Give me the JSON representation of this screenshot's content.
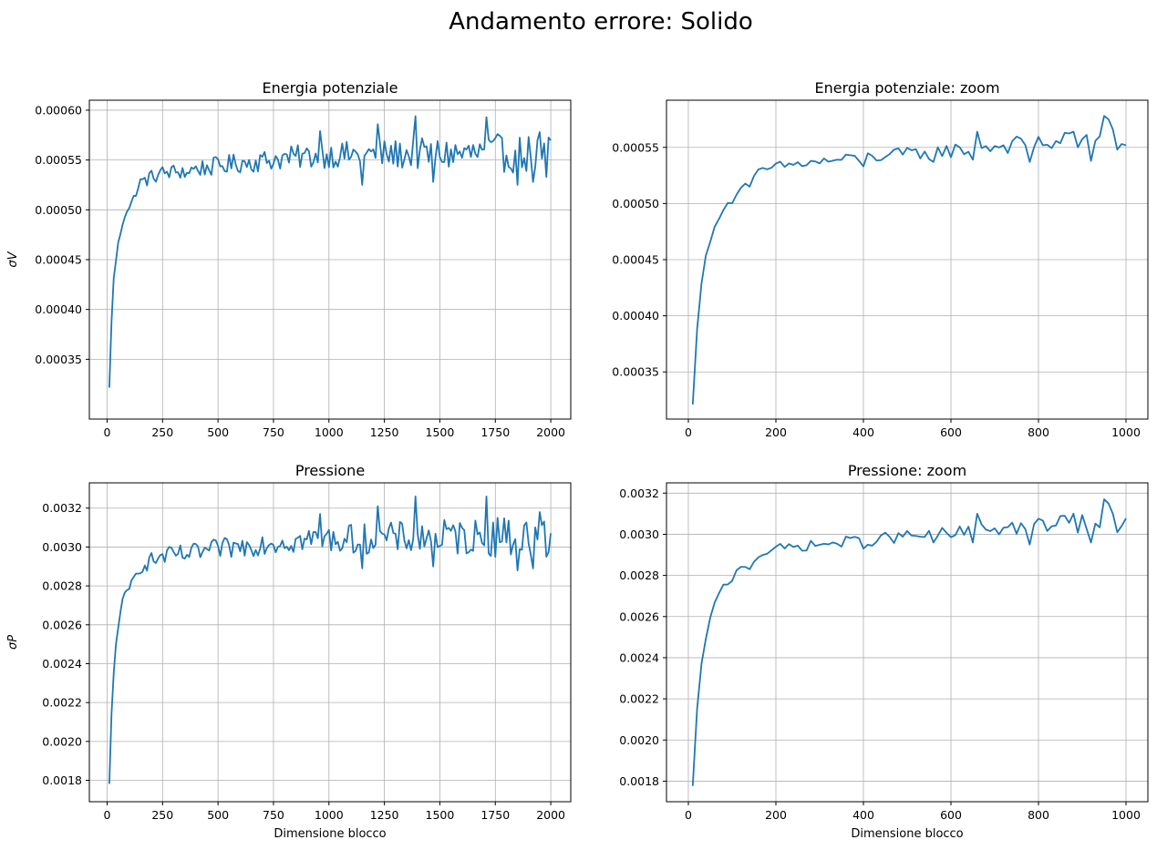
{
  "figure": {
    "title": "Andamento errore: Solido"
  },
  "chart_data": [
    {
      "type": "line",
      "title": "Energia potenziale",
      "xlabel": "",
      "ylabel": "σV",
      "xlim": [
        -80,
        2090
      ],
      "ylim": [
        0.00029,
        0.00061
      ],
      "xticks": [
        0,
        250,
        500,
        750,
        1000,
        1250,
        1500,
        1750,
        2000
      ],
      "xtick_labels": [
        "0",
        "250",
        "500",
        "750",
        "1000",
        "1250",
        "1500",
        "1750",
        "2000"
      ],
      "yticks": [
        0.00035,
        0.0004,
        0.00045,
        0.0005,
        0.00055,
        0.0006
      ],
      "ytick_labels": [
        "0.00035",
        "0.00040",
        "0.00045",
        "0.00050",
        "0.00055",
        "0.00060"
      ],
      "grid": true,
      "color": "#1f77b4",
      "x_start": 10,
      "x_step": 10,
      "x_end": 2000,
      "anchors": [
        [
          10,
          0.00032
        ],
        [
          20,
          0.00039
        ],
        [
          30,
          0.00043
        ],
        [
          40,
          0.00045
        ],
        [
          50,
          0.000465
        ],
        [
          60,
          0.000477
        ],
        [
          70,
          0.000487
        ],
        [
          80,
          0.000495
        ],
        [
          90,
          0.0005
        ],
        [
          100,
          0.000502
        ],
        [
          110,
          0.000507
        ],
        [
          150,
          0.000527
        ],
        [
          200,
          0.000533
        ],
        [
          250,
          0.000537
        ],
        [
          300,
          0.000538
        ],
        [
          400,
          0.000541
        ],
        [
          500,
          0.000544
        ],
        [
          600,
          0.000547
        ],
        [
          700,
          0.000549
        ],
        [
          800,
          0.000552
        ],
        [
          1000,
          0.000555
        ],
        [
          1500,
          0.000556
        ],
        [
          2000,
          0.000556
        ]
      ],
      "noise": 7e-06,
      "noise_growth": 1.3e-05,
      "spikes": [
        [
          960,
          0.000579
        ],
        [
          1220,
          0.000586
        ],
        [
          1390,
          0.000594
        ],
        [
          1710,
          0.000593
        ],
        [
          1760,
          0.000576
        ],
        [
          1950,
          0.000578
        ],
        [
          1920,
          0.000528
        ],
        [
          1150,
          0.000525
        ],
        [
          1470,
          0.000528
        ],
        [
          1850,
          0.000525
        ],
        [
          1980,
          0.000533
        ],
        [
          350,
          0.000533
        ]
      ]
    },
    {
      "type": "line",
      "title": "Energia potenziale: zoom",
      "xlabel": "",
      "ylabel": "",
      "xlim": [
        -50,
        1050
      ],
      "ylim": [
        0.000308,
        0.000592
      ],
      "xticks": [
        0,
        200,
        400,
        600,
        800,
        1000
      ],
      "xtick_labels": [
        "0",
        "200",
        "400",
        "600",
        "800",
        "1000"
      ],
      "yticks": [
        0.00035,
        0.0004,
        0.00045,
        0.0005,
        0.00055
      ],
      "ytick_labels": [
        "0.00035",
        "0.00040",
        "0.00045",
        "0.00050",
        "0.00055"
      ],
      "grid": true,
      "color": "#1f77b4",
      "x_start": 10,
      "x_step": 10,
      "x_end": 1000,
      "anchors": [
        [
          10,
          0.00032
        ],
        [
          20,
          0.00039
        ],
        [
          30,
          0.00043
        ],
        [
          40,
          0.000452
        ],
        [
          50,
          0.000466
        ],
        [
          60,
          0.000478
        ],
        [
          70,
          0.000488
        ],
        [
          80,
          0.000496
        ],
        [
          90,
          0.0005
        ],
        [
          100,
          0.000502
        ],
        [
          110,
          0.000507
        ],
        [
          120,
          0.000515
        ],
        [
          140,
          0.000518
        ],
        [
          160,
          0.000527
        ],
        [
          200,
          0.000533
        ],
        [
          300,
          0.000537
        ],
        [
          400,
          0.000541
        ],
        [
          500,
          0.000544
        ],
        [
          600,
          0.000547
        ],
        [
          700,
          0.000551
        ],
        [
          800,
          0.000554
        ],
        [
          900,
          0.000555
        ],
        [
          1000,
          0.000554
        ]
      ],
      "noise": 4e-06,
      "noise_growth": 5e-06,
      "spikes": [
        [
          950,
          0.000578
        ],
        [
          960,
          0.000575
        ],
        [
          970,
          0.000566
        ],
        [
          990,
          0.000553
        ],
        [
          980,
          0.000548
        ],
        [
          920,
          0.000538
        ],
        [
          780,
          0.000537
        ],
        [
          560,
          0.000537
        ],
        [
          650,
          0.000539
        ],
        [
          660,
          0.000564
        ],
        [
          860,
          0.000563
        ],
        [
          880,
          0.000564
        ],
        [
          140,
          0.000515
        ],
        [
          400,
          0.000533
        ]
      ]
    },
    {
      "type": "line",
      "title": "Pressione",
      "xlabel": "Dimensione blocco",
      "ylabel": "σP",
      "xlim": [
        -80,
        2090
      ],
      "ylim": [
        0.00169,
        0.00333
      ],
      "xticks": [
        0,
        250,
        500,
        750,
        1000,
        1250,
        1500,
        1750,
        2000
      ],
      "xtick_labels": [
        "0",
        "250",
        "500",
        "750",
        "1000",
        "1250",
        "1500",
        "1750",
        "2000"
      ],
      "yticks": [
        0.0018,
        0.002,
        0.0022,
        0.0024,
        0.0026,
        0.0028,
        0.003,
        0.0032
      ],
      "ytick_labels": [
        "0.0018",
        "0.0020",
        "0.0022",
        "0.0024",
        "0.0026",
        "0.0028",
        "0.0030",
        "0.0032"
      ],
      "grid": true,
      "color": "#1f77b4",
      "x_start": 10,
      "x_step": 10,
      "x_end": 2000,
      "anchors": [
        [
          10,
          0.00177
        ],
        [
          20,
          0.00213
        ],
        [
          30,
          0.00235
        ],
        [
          40,
          0.0025
        ],
        [
          50,
          0.0026
        ],
        [
          60,
          0.00267
        ],
        [
          70,
          0.00272
        ],
        [
          80,
          0.00275
        ],
        [
          90,
          0.00276
        ],
        [
          100,
          0.00278
        ],
        [
          110,
          0.00282
        ],
        [
          150,
          0.0029
        ],
        [
          200,
          0.00293
        ],
        [
          250,
          0.00295
        ],
        [
          300,
          0.00296
        ],
        [
          400,
          0.00297
        ],
        [
          500,
          0.00299
        ],
        [
          600,
          0.003
        ],
        [
          700,
          0.00302
        ],
        [
          800,
          0.00303
        ],
        [
          1000,
          0.00304
        ],
        [
          1500,
          0.00305
        ],
        [
          2000,
          0.00305
        ]
      ],
      "noise": 4e-05,
      "noise_growth": 7e-05,
      "spikes": [
        [
          960,
          0.00317
        ],
        [
          1220,
          0.00321
        ],
        [
          1390,
          0.00326
        ],
        [
          1710,
          0.00326
        ],
        [
          1760,
          0.00315
        ],
        [
          1950,
          0.00318
        ],
        [
          1920,
          0.00289
        ],
        [
          1150,
          0.00289
        ],
        [
          1470,
          0.0029
        ],
        [
          1850,
          0.00288
        ],
        [
          1980,
          0.00295
        ],
        [
          350,
          0.00294
        ]
      ]
    },
    {
      "type": "line",
      "title": "Pressione: zoom",
      "xlabel": "Dimensione blocco",
      "ylabel": "",
      "xlim": [
        -50,
        1050
      ],
      "ylim": [
        0.0017,
        0.00325
      ],
      "xticks": [
        0,
        200,
        400,
        600,
        800,
        1000
      ],
      "xtick_labels": [
        "0",
        "200",
        "400",
        "600",
        "800",
        "1000"
      ],
      "yticks": [
        0.0018,
        0.002,
        0.0022,
        0.0024,
        0.0026,
        0.0028,
        0.003,
        0.0032
      ],
      "ytick_labels": [
        "0.0018",
        "0.0020",
        "0.0022",
        "0.0024",
        "0.0026",
        "0.0028",
        "0.0030",
        "0.0032"
      ],
      "grid": true,
      "color": "#1f77b4",
      "x_start": 10,
      "x_step": 10,
      "x_end": 1000,
      "anchors": [
        [
          10,
          0.00177
        ],
        [
          20,
          0.00215
        ],
        [
          30,
          0.00236
        ],
        [
          40,
          0.0025
        ],
        [
          50,
          0.00259
        ],
        [
          60,
          0.00266
        ],
        [
          70,
          0.00271
        ],
        [
          80,
          0.00275
        ],
        [
          90,
          0.00276
        ],
        [
          100,
          0.00278
        ],
        [
          110,
          0.00282
        ],
        [
          120,
          0.00285
        ],
        [
          140,
          0.00284
        ],
        [
          160,
          0.0029
        ],
        [
          200,
          0.00293
        ],
        [
          300,
          0.00295
        ],
        [
          400,
          0.00297
        ],
        [
          500,
          0.00299
        ],
        [
          600,
          0.003
        ],
        [
          700,
          0.00303
        ],
        [
          800,
          0.00304
        ],
        [
          900,
          0.00305
        ],
        [
          1000,
          0.00303
        ]
      ],
      "noise": 2e-05,
      "noise_growth": 3e-05,
      "spikes": [
        [
          950,
          0.00317
        ],
        [
          960,
          0.00315
        ],
        [
          970,
          0.0031
        ],
        [
          990,
          0.00304
        ],
        [
          980,
          0.00301
        ],
        [
          920,
          0.00296
        ],
        [
          780,
          0.00295
        ],
        [
          560,
          0.00296
        ],
        [
          650,
          0.00296
        ],
        [
          660,
          0.0031
        ],
        [
          860,
          0.00309
        ],
        [
          880,
          0.0031
        ],
        [
          140,
          0.00283
        ],
        [
          400,
          0.00293
        ]
      ]
    }
  ]
}
